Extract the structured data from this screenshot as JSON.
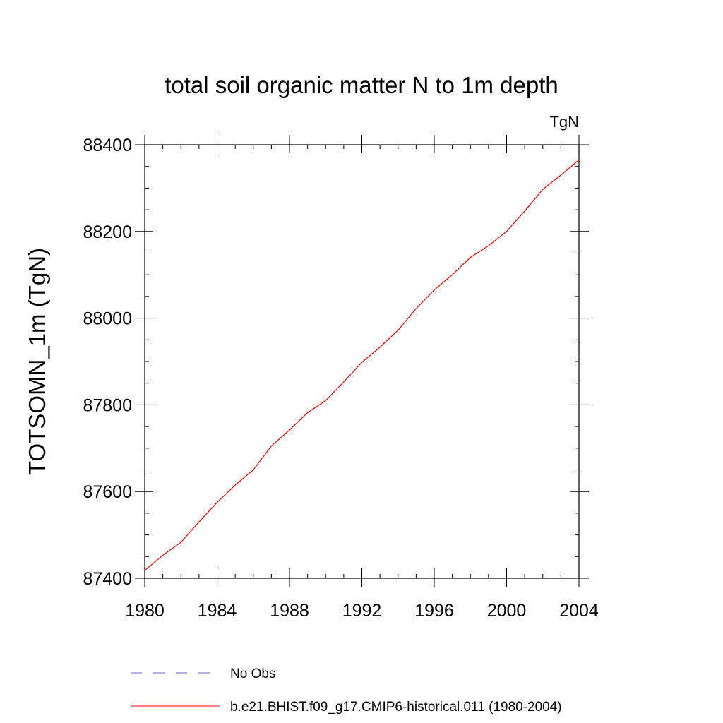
{
  "chart_data": {
    "type": "line",
    "title": "total soil organic matter N to 1m depth",
    "units": "TgN",
    "ylabel": "TOTSOMN_1m  (TgN)",
    "xlabel": "",
    "xlim": [
      1980,
      2004
    ],
    "ylim": [
      87400,
      88400
    ],
    "x_ticks": [
      1980,
      1984,
      1988,
      1992,
      1996,
      2000,
      2004
    ],
    "y_ticks": [
      87400,
      87600,
      87800,
      88000,
      88200,
      88400
    ],
    "grid": false,
    "legend_position": "bottom",
    "series": [
      {
        "name": "No Obs",
        "color": "#6b5fd6",
        "dash": "dashed",
        "x": [],
        "y": []
      },
      {
        "name": "b.e21.BHIST.f09_g17.CMIP6-historical.011 (1980-2004)",
        "color": "#ff0000",
        "dash": "solid",
        "x": [
          1980,
          1981,
          1982,
          1983,
          1984,
          1985,
          1986,
          1987,
          1988,
          1989,
          1990,
          1991,
          1992,
          1993,
          1994,
          1995,
          1996,
          1997,
          1998,
          1999,
          2000,
          2001,
          2002,
          2003,
          2004
        ],
        "y": [
          87418,
          87453,
          87483,
          87530,
          87575,
          87615,
          87650,
          87705,
          87742,
          87782,
          87810,
          87853,
          87898,
          87933,
          87972,
          88022,
          88065,
          88100,
          88140,
          88167,
          88200,
          88247,
          88297,
          88330,
          88365
        ]
      }
    ]
  }
}
